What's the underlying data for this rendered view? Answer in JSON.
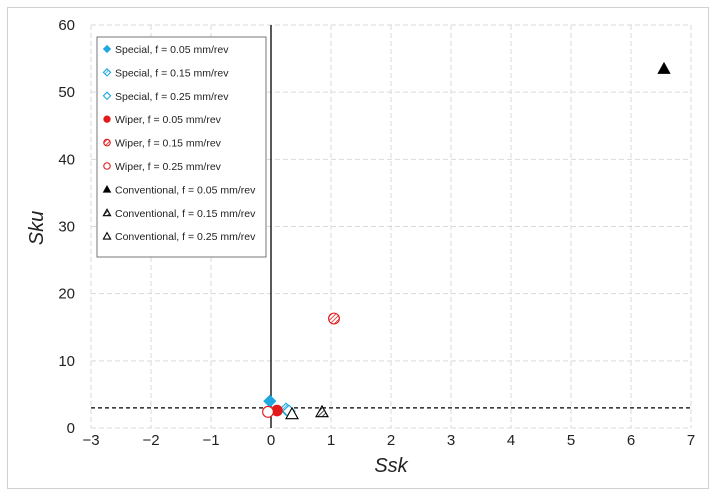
{
  "chart_data": {
    "type": "scatter",
    "title": "",
    "xlabel": "Ssk",
    "ylabel": "Sku",
    "xlim": [
      -3,
      7
    ],
    "ylim": [
      0,
      60
    ],
    "xticks": [
      -3,
      -2,
      -1,
      0,
      1,
      2,
      3,
      4,
      5,
      6,
      7
    ],
    "yticks": [
      0,
      10,
      20,
      30,
      40,
      50,
      60
    ],
    "xtick_labels": [
      "−3",
      "−2",
      "−1",
      "0",
      "1",
      "2",
      "3",
      "4",
      "5",
      "6",
      "7"
    ],
    "ytick_labels": [
      "0",
      "10",
      "20",
      "30",
      "40",
      "50",
      "60"
    ],
    "grid": true,
    "legend_position": "top-left",
    "reference_lines": {
      "vertical_x": 0,
      "horizontal_y": 3
    },
    "series": [
      {
        "name": "Special, f = 0.05 mm/rev",
        "marker": "diamond",
        "fill": "solid",
        "color": "#1ea7e1",
        "points": [
          [
            -0.02,
            4.0
          ]
        ]
      },
      {
        "name": "Special, f = 0.15 mm/rev",
        "marker": "diamond",
        "fill": "hatched",
        "color": "#1ea7e1",
        "points": [
          [
            0.25,
            2.8
          ]
        ]
      },
      {
        "name": "Special, f = 0.25 mm/rev",
        "marker": "diamond",
        "fill": "hollow",
        "color": "#1ea7e1",
        "points": [
          [
            0.3,
            2.5
          ]
        ]
      },
      {
        "name": "Wiper, f = 0.05 mm/rev",
        "marker": "circle",
        "fill": "solid",
        "color": "#e31a1c",
        "points": [
          [
            0.1,
            2.6
          ]
        ]
      },
      {
        "name": "Wiper, f = 0.15 mm/rev",
        "marker": "circle",
        "fill": "hatched",
        "color": "#e31a1c",
        "points": [
          [
            1.05,
            16.3
          ]
        ]
      },
      {
        "name": "Wiper, f = 0.25 mm/rev",
        "marker": "circle",
        "fill": "hollow",
        "color": "#e31a1c",
        "points": [
          [
            -0.05,
            2.4
          ]
        ]
      },
      {
        "name": "Conventional, f = 0.05 mm/rev",
        "marker": "triangle",
        "fill": "solid",
        "color": "#000000",
        "points": [
          [
            6.55,
            53.5
          ]
        ]
      },
      {
        "name": "Conventional, f = 0.15 mm/rev",
        "marker": "triangle",
        "fill": "hatched",
        "color": "#000000",
        "points": [
          [
            0.85,
            2.4
          ]
        ]
      },
      {
        "name": "Conventional, f = 0.25 mm/rev",
        "marker": "triangle",
        "fill": "hollow",
        "color": "#000000",
        "points": [
          [
            0.35,
            2.1
          ]
        ]
      }
    ]
  }
}
